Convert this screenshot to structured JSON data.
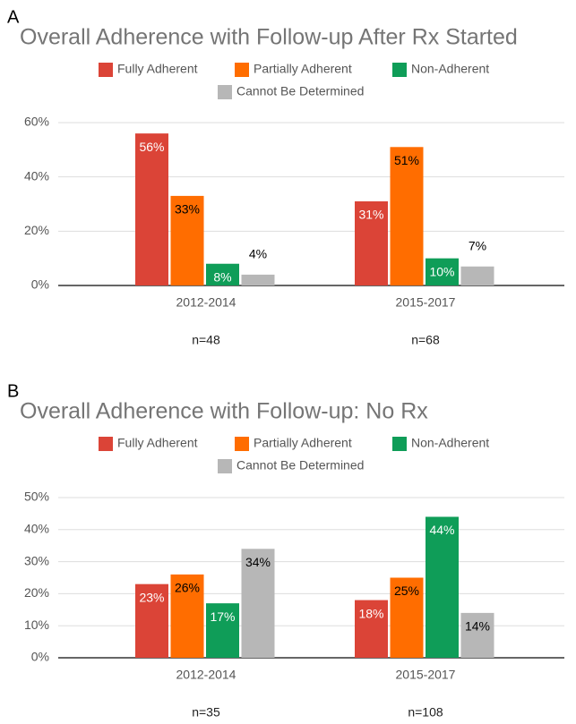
{
  "chart_data": [
    {
      "type": "bar",
      "panel_label": "A",
      "title": "Overall Adherence with Follow-up After Rx Started",
      "categories": [
        "2012-2014",
        "2015-2017"
      ],
      "annotations": [
        "n=48",
        "n=68"
      ],
      "series": [
        {
          "name": "Fully Adherent",
          "color": "#db4437",
          "label_color": "#ffffff",
          "values": [
            56,
            31
          ],
          "value_labels": [
            "56%",
            "31%"
          ]
        },
        {
          "name": "Partially Adherent",
          "color": "#ff6d00",
          "label_color": "#000000",
          "values": [
            33,
            51
          ],
          "value_labels": [
            "33%",
            "51%"
          ]
        },
        {
          "name": "Non-Adherent",
          "color": "#0f9d58",
          "label_color": "#ffffff",
          "values": [
            8,
            10
          ],
          "value_labels": [
            "8%",
            "10%"
          ]
        },
        {
          "name": "Cannot Be Determined",
          "color": "#b7b7b7",
          "label_color": "#000000",
          "values": [
            4,
            7
          ],
          "value_labels": [
            "4%",
            "7%"
          ]
        }
      ],
      "ylim": [
        0,
        60
      ],
      "yticks": [
        {
          "value": 0,
          "label": "0%"
        },
        {
          "value": 20,
          "label": "20%"
        },
        {
          "value": 40,
          "label": "40%"
        },
        {
          "value": 60,
          "label": "60%"
        }
      ],
      "grid": true,
      "legend": "top"
    },
    {
      "type": "bar",
      "panel_label": "B",
      "title": "Overall Adherence with Follow-up: No Rx",
      "categories": [
        "2012-2014",
        "2015-2017"
      ],
      "annotations": [
        "n=35",
        "n=108"
      ],
      "series": [
        {
          "name": "Fully Adherent",
          "color": "#db4437",
          "label_color": "#ffffff",
          "values": [
            23,
            18
          ],
          "value_labels": [
            "23%",
            "18%"
          ]
        },
        {
          "name": "Partially Adherent",
          "color": "#ff6d00",
          "label_color": "#000000",
          "values": [
            26,
            25
          ],
          "value_labels": [
            "26%",
            "25%"
          ]
        },
        {
          "name": "Non-Adherent",
          "color": "#0f9d58",
          "label_color": "#ffffff",
          "values": [
            17,
            44
          ],
          "value_labels": [
            "17%",
            "44%"
          ]
        },
        {
          "name": "Cannot Be Determined",
          "color": "#b7b7b7",
          "label_color": "#000000",
          "values": [
            34,
            14
          ],
          "value_labels": [
            "34%",
            "14%"
          ]
        }
      ],
      "ylim": [
        0,
        50
      ],
      "yticks": [
        {
          "value": 0,
          "label": "0%"
        },
        {
          "value": 10,
          "label": "10%"
        },
        {
          "value": 20,
          "label": "20%"
        },
        {
          "value": 30,
          "label": "30%"
        },
        {
          "value": 40,
          "label": "40%"
        },
        {
          "value": 50,
          "label": "50%"
        }
      ],
      "grid": true,
      "legend": "top"
    }
  ]
}
